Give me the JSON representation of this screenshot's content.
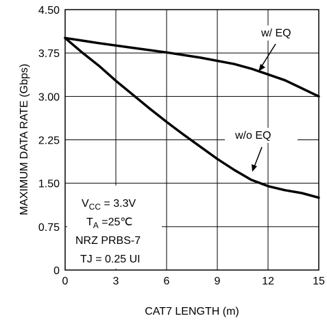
{
  "chart_data": {
    "type": "line",
    "title": "",
    "xlabel": "CAT7 LENGTH (m)",
    "ylabel": "MAXIMUM DATA RATE (Gbps)",
    "xlim": [
      0,
      15
    ],
    "ylim": [
      0,
      4.5
    ],
    "x_ticks": [
      "0",
      "3",
      "6",
      "9",
      "12",
      "15"
    ],
    "y_ticks": [
      "0",
      "0.75",
      "1.50",
      "2.25",
      "3.00",
      "3.75",
      "4.50"
    ],
    "grid": true,
    "series": [
      {
        "name": "w/ EQ",
        "x": [
          0,
          2,
          4,
          6,
          8,
          10,
          11,
          12,
          13,
          14,
          15
        ],
        "y": [
          4.01,
          3.92,
          3.84,
          3.76,
          3.67,
          3.56,
          3.48,
          3.38,
          3.28,
          3.14,
          3.0
        ]
      },
      {
        "name": "w/o EQ",
        "x": [
          0,
          1,
          2,
          3,
          4,
          5,
          6,
          7,
          8,
          9,
          10,
          11,
          12,
          13,
          14,
          15
        ],
        "y": [
          4.01,
          3.76,
          3.53,
          3.27,
          3.03,
          2.79,
          2.56,
          2.34,
          2.13,
          1.92,
          1.73,
          1.56,
          1.45,
          1.38,
          1.33,
          1.25
        ]
      }
    ],
    "annotations": {
      "w_eq": "w/ EQ",
      "wo_eq": "w/o EQ"
    },
    "conditions": {
      "vcc_main": "V",
      "vcc_sub": "CC",
      "vcc_value": " = 3.3V",
      "ta_main": "T",
      "ta_sub": "A",
      "ta_value": " =25℃",
      "pattern": "NRZ PRBS-7",
      "tj": "TJ = 0.25 UI"
    }
  }
}
